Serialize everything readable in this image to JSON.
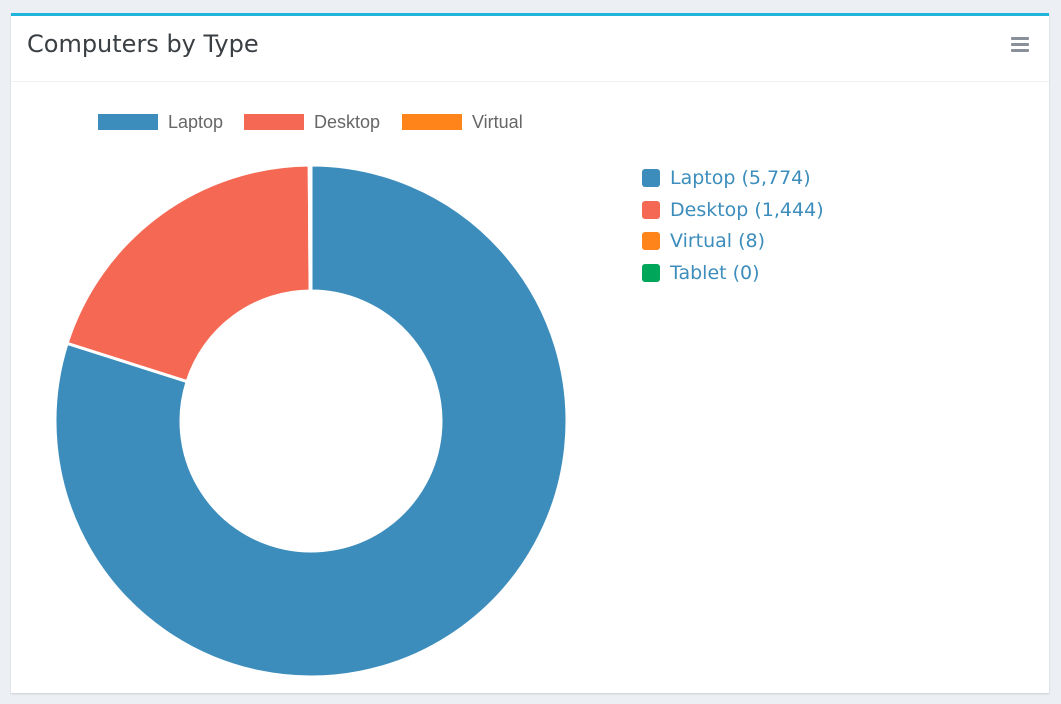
{
  "panel": {
    "title": "Computers by Type",
    "menu_icon": "hamburger-menu-icon"
  },
  "colors": {
    "accent": "#1eb4dc",
    "laptop": "#3d8dbc",
    "desktop": "#f56954",
    "virtual": "#ff851b",
    "tablet": "#00a65a",
    "link": "#3c8dbc"
  },
  "chart_data": {
    "type": "pie",
    "variant": "doughnut",
    "categories": [
      "Laptop",
      "Desktop",
      "Virtual"
    ],
    "values": [
      5774,
      1444,
      8
    ],
    "colors": [
      "#3d8dbc",
      "#f56954",
      "#ff851b"
    ],
    "legend_position": "top"
  },
  "side_legend": {
    "items": [
      {
        "label": "Laptop (5,774)",
        "color": "#3d8dbc"
      },
      {
        "label": "Desktop (1,444)",
        "color": "#f56954"
      },
      {
        "label": "Virtual (8)",
        "color": "#ff851b"
      },
      {
        "label": "Tablet (0)",
        "color": "#00a65a"
      }
    ]
  }
}
